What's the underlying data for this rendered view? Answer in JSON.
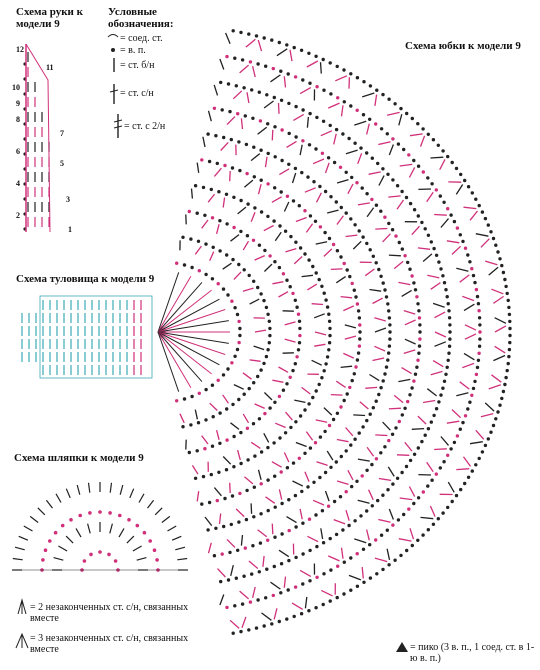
{
  "arm": {
    "title": "Схема руки к модели 9",
    "rows": [
      "12",
      "11",
      "10",
      "9",
      "8",
      "7",
      "6",
      "5",
      "4",
      "3",
      "2",
      "1"
    ]
  },
  "legend": {
    "title": "Условные обозначения:",
    "items": [
      "= соед. ст.",
      "= в. п.",
      "= ст. б/н",
      "= ст. с/н",
      "= ст. с 2/н"
    ]
  },
  "skirt": {
    "title": "Схема юбки к модели 9"
  },
  "body": {
    "title": "Схема туловища к модели 9"
  },
  "hat": {
    "title": "Схема шляпки к модели 9"
  },
  "notes": [
    "= 2 незаконченных ст. с/н, связанных вместе",
    "= 3 незаконченных ст. с/н, связанных вместе",
    "= пико (3 в. п., 1 соед. ст. в 1-ю в. п.)"
  ]
}
